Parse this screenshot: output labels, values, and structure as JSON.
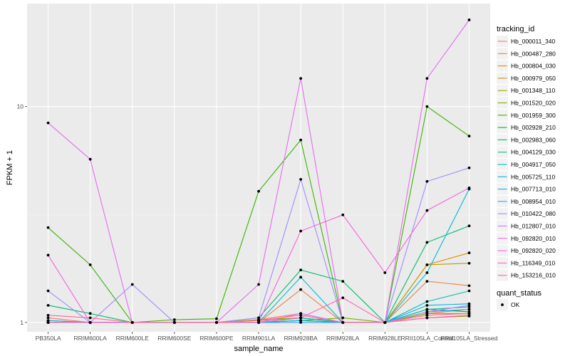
{
  "chart_data": {
    "type": "line",
    "xlabel": "sample_name",
    "ylabel": "FPKM + 1",
    "y_scale": "log10",
    "ylim": [
      0.905,
      30
    ],
    "y_ticks": [
      1,
      10
    ],
    "y_tick_labels": [
      "1",
      "10"
    ],
    "grid": true,
    "legend_position": "right",
    "categories": [
      "PB350LA",
      "RRIM600LA",
      "RRIM600LE",
      "RRIM600SE",
      "RRIM600PE",
      "RRIM901LA",
      "RRIM928BA",
      "RRIM928LA",
      "RRIM928LE",
      "RRII105LA_Control",
      "RRII105LA_Stressed"
    ],
    "legend_title": "tracking_id",
    "shape_legend_title": "quant_status",
    "shape_legend_items": [
      "OK"
    ],
    "series": [
      {
        "name": "Hb_000011_340",
        "color": "#F8766D",
        "values": [
          1.05,
          1.0,
          1.0,
          1.0,
          1.0,
          1.03,
          1.1,
          1.0,
          1.0,
          1.1,
          1.15
        ]
      },
      {
        "name": "Hb_000487_280",
        "color": "#EE8043",
        "values": [
          1.0,
          1.0,
          1.0,
          1.0,
          1.0,
          1.0,
          1.42,
          1.0,
          1.0,
          1.55,
          1.48
        ]
      },
      {
        "name": "Hb_000804_030",
        "color": "#DC8F00",
        "values": [
          1.0,
          1.0,
          1.0,
          1.0,
          1.0,
          1.0,
          1.05,
          1.0,
          1.0,
          1.85,
          2.1
        ]
      },
      {
        "name": "Hb_000979_050",
        "color": "#C29A00",
        "values": [
          1.02,
          1.0,
          1.0,
          1.0,
          1.0,
          1.02,
          1.05,
          1.0,
          1.0,
          1.85,
          1.88
        ]
      },
      {
        "name": "Hb_001348_110",
        "color": "#A3A500",
        "values": [
          1.0,
          1.0,
          1.0,
          1.0,
          1.0,
          1.03,
          1.05,
          1.0,
          1.0,
          1.05,
          1.07
        ]
      },
      {
        "name": "Hb_001520_020",
        "color": "#7CAE00",
        "values": [
          1.0,
          1.0,
          1.0,
          1.0,
          1.0,
          1.0,
          1.02,
          1.05,
          1.0,
          1.1,
          1.1
        ]
      },
      {
        "name": "Hb_001959_300",
        "color": "#3BB300",
        "values": [
          2.75,
          1.85,
          1.0,
          1.03,
          1.04,
          4.05,
          7.0,
          1.0,
          1.0,
          10.0,
          7.3
        ]
      },
      {
        "name": "Hb_002928_210",
        "color": "#00B82B",
        "values": [
          1.0,
          1.0,
          1.0,
          1.0,
          1.0,
          1.0,
          1.02,
          1.0,
          1.0,
          1.15,
          1.12
        ]
      },
      {
        "name": "Hb_002983_060",
        "color": "#00BB6A",
        "values": [
          1.2,
          1.1,
          1.0,
          1.0,
          1.0,
          1.05,
          1.75,
          1.55,
          1.0,
          2.35,
          2.8
        ]
      },
      {
        "name": "Hb_004129_030",
        "color": "#00C094",
        "values": [
          1.0,
          1.0,
          1.0,
          1.0,
          1.0,
          1.0,
          1.05,
          1.0,
          1.0,
          1.15,
          1.18
        ]
      },
      {
        "name": "Hb_004917_050",
        "color": "#00BFB7",
        "values": [
          1.0,
          1.0,
          1.0,
          1.0,
          1.0,
          1.0,
          1.05,
          1.0,
          1.0,
          1.25,
          1.4
        ]
      },
      {
        "name": "Hb_005725_110",
        "color": "#00BBD6",
        "values": [
          1.02,
          1.0,
          1.0,
          1.0,
          1.0,
          1.0,
          1.62,
          1.0,
          1.0,
          1.7,
          4.15
        ]
      },
      {
        "name": "Hb_007713_010",
        "color": "#00B4EF",
        "values": [
          1.0,
          1.0,
          1.0,
          1.0,
          1.0,
          1.0,
          1.02,
          1.0,
          1.0,
          1.2,
          1.22
        ]
      },
      {
        "name": "Hb_008954_010",
        "color": "#35A2FF",
        "values": [
          1.0,
          1.0,
          1.0,
          1.0,
          1.0,
          1.0,
          1.0,
          1.0,
          1.0,
          1.12,
          1.15
        ]
      },
      {
        "name": "Hb_010422_080",
        "color": "#9E8DFF",
        "values": [
          1.4,
          1.0,
          1.5,
          1.0,
          1.0,
          1.05,
          4.6,
          1.0,
          1.0,
          4.5,
          5.2
        ]
      },
      {
        "name": "Hb_012807_010",
        "color": "#C77CFF",
        "values": [
          1.0,
          1.0,
          1.0,
          1.0,
          1.0,
          1.0,
          1.1,
          1.0,
          1.0,
          1.12,
          1.2
        ]
      },
      {
        "name": "Hb_092820_010",
        "color": "#E76BF3",
        "values": [
          8.4,
          5.7,
          1.0,
          1.0,
          1.0,
          1.5,
          13.5,
          1.0,
          1.0,
          13.5,
          25.2
        ]
      },
      {
        "name": "Hb_092820_020",
        "color": "#F763DF",
        "values": [
          2.05,
          1.0,
          1.0,
          1.0,
          1.0,
          1.0,
          2.65,
          3.15,
          1.7,
          3.3,
          4.2
        ]
      },
      {
        "name": "Hb_116349_010",
        "color": "#FF64BA",
        "values": [
          1.0,
          1.0,
          1.0,
          1.0,
          1.0,
          1.0,
          1.05,
          1.3,
          1.0,
          1.05,
          1.08
        ]
      },
      {
        "name": "Hb_153216_010",
        "color": "#FF6C90",
        "values": [
          1.08,
          1.05,
          1.0,
          1.0,
          1.0,
          1.02,
          1.08,
          1.0,
          1.0,
          1.08,
          1.1
        ]
      }
    ]
  }
}
